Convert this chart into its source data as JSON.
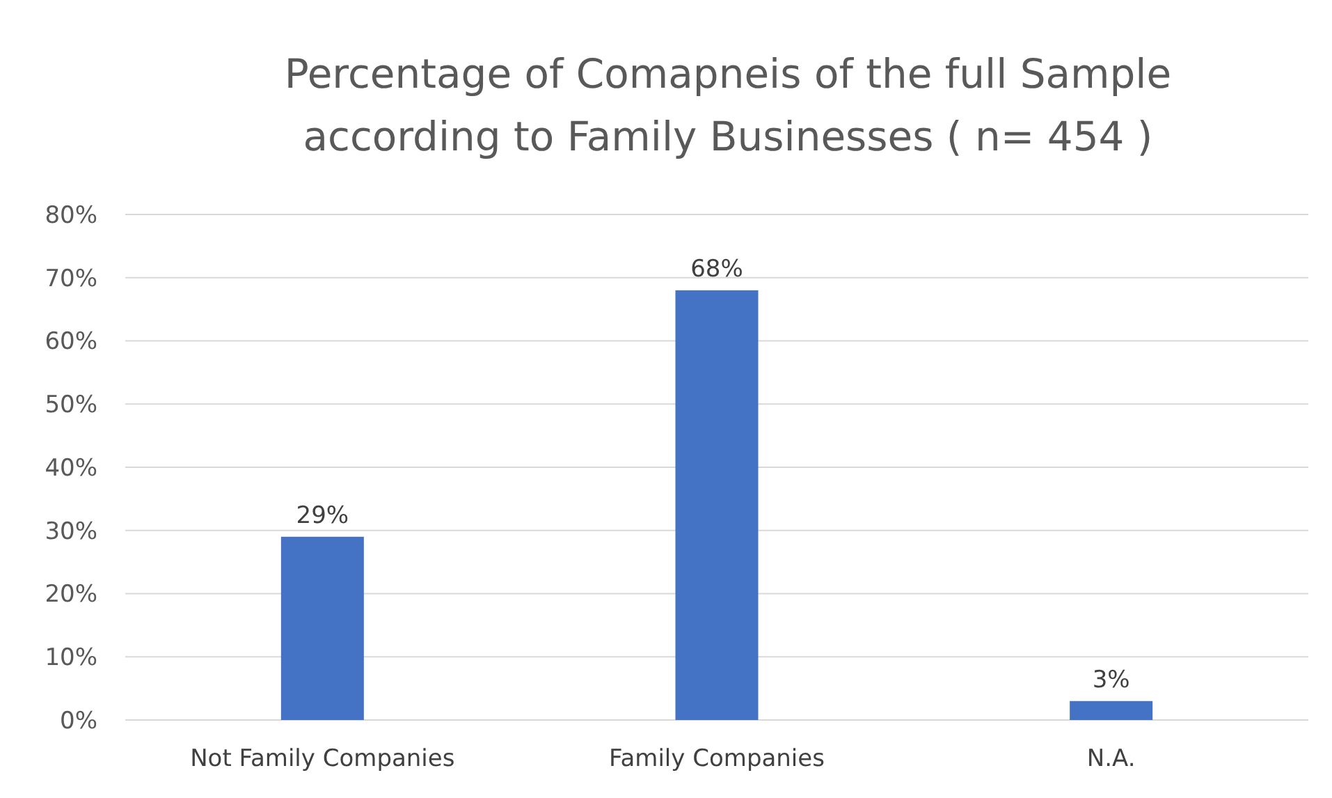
{
  "chart_data": {
    "type": "bar",
    "title": "Percentage of Comapneis of the full Sample according to Family Businesses ( n= 454 )",
    "categories": [
      "Not Family Companies",
      "Family Companies",
      "N.A."
    ],
    "values": [
      29,
      68,
      3
    ],
    "value_labels": [
      "29%",
      "68%",
      "3%"
    ],
    "color": "#4472c4",
    "ylim": [
      0,
      80
    ],
    "yticks": [
      {
        "value": 0,
        "label": "0%"
      },
      {
        "value": 10,
        "label": "10%"
      },
      {
        "value": 20,
        "label": "20%"
      },
      {
        "value": 30,
        "label": "30%"
      },
      {
        "value": 40,
        "label": "40%"
      },
      {
        "value": 50,
        "label": "50%"
      },
      {
        "value": 60,
        "label": "60%"
      },
      {
        "value": 70,
        "label": "70%"
      },
      {
        "value": 80,
        "label": "80%"
      }
    ],
    "grid": "y"
  }
}
